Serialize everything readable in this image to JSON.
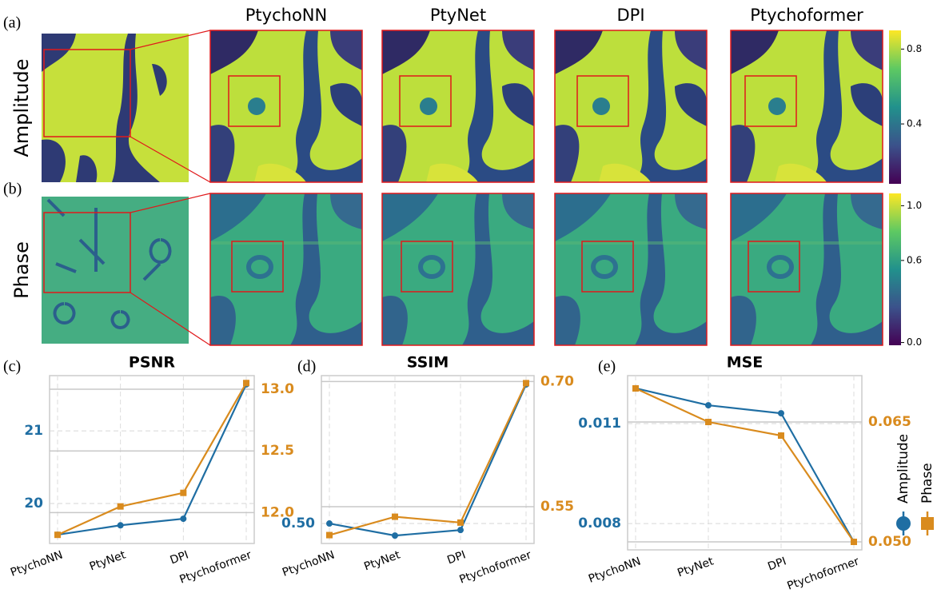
{
  "figure": {
    "panels": [
      "(a)",
      "(b)",
      "(c)",
      "(d)",
      "(e)"
    ],
    "methods": [
      "PtychoNN",
      "PtyNet",
      "DPI",
      "Ptychoformer"
    ],
    "rows": [
      "Amplitude",
      "Phase"
    ],
    "colorbars": [
      {
        "lim": [
          0.08,
          0.9
        ],
        "ticks": [
          0.8,
          0.4
        ]
      },
      {
        "lim": [
          -0.02,
          1.09
        ],
        "ticks": [
          {
            "value": 1,
            "label": "1.0"
          },
          0.6,
          {
            "value": 0,
            "label": "0.0"
          }
        ]
      }
    ]
  },
  "chart_data": [
    {
      "type": "line",
      "title": "PSNR",
      "categories": [
        "PtychoNN",
        "PtyNet",
        "DPI",
        "Ptychoformer"
      ],
      "ylim": [
        19.45,
        21.76
      ],
      "yticks": [
        20,
        21
      ],
      "y2lim": [
        11.75,
        13.11
      ],
      "y2ticks": [
        {
          "value": 12,
          "label": "12.0"
        },
        12.5,
        {
          "value": 13,
          "label": "13.0"
        }
      ],
      "series": [
        {
          "color": "#1f6ea3",
          "marker": "circle",
          "values": [
            19.57,
            19.7,
            19.79,
            21.64
          ]
        },
        {
          "color": "#d98b1e",
          "marker": "square",
          "axis": "y2",
          "values": [
            11.82,
            12.05,
            12.16,
            13.05
          ]
        }
      ]
    },
    {
      "type": "line",
      "title": "SSIM",
      "categories": [
        "PtychoNN",
        "PtyNet",
        "DPI",
        "Ptychoformer"
      ],
      "ylim": [
        0.457,
        0.819
      ],
      "yticks": [
        {
          "value": 0.5,
          "label": "0.50"
        }
      ],
      "y2lim": [
        0.506,
        0.707
      ],
      "y2ticks": [
        0.55,
        {
          "value": 0.7,
          "label": "0.70"
        }
      ],
      "series": [
        {
          "color": "#1f6ea3",
          "marker": "circle",
          "values": [
            0.5,
            0.474,
            0.486,
            0.8
          ]
        },
        {
          "color": "#d98b1e",
          "marker": "square",
          "axis": "y2",
          "values": [
            0.516,
            0.538,
            0.531,
            0.698
          ]
        }
      ]
    },
    {
      "type": "line",
      "title": "MSE",
      "categories": [
        "PtychoNN",
        "PtyNet",
        "DPI",
        "Ptychoformer"
      ],
      "ylim": [
        0.00721,
        0.01244
      ],
      "yticks": [
        0.008,
        0.011
      ],
      "y2lim": [
        0.049,
        0.0708
      ],
      "y2ticks": [
        {
          "value": 0.05,
          "label": "0.050"
        },
        0.065
      ],
      "series": [
        {
          "name": "Amplitude",
          "color": "#1f6ea3",
          "marker": "circle",
          "values": [
            0.01206,
            0.01155,
            0.01131,
            0.00745
          ]
        },
        {
          "name": "Phase",
          "color": "#d98b1e",
          "marker": "square",
          "axis": "y2",
          "values": [
            0.0692,
            0.065,
            0.0633,
            0.05
          ]
        }
      ]
    }
  ]
}
